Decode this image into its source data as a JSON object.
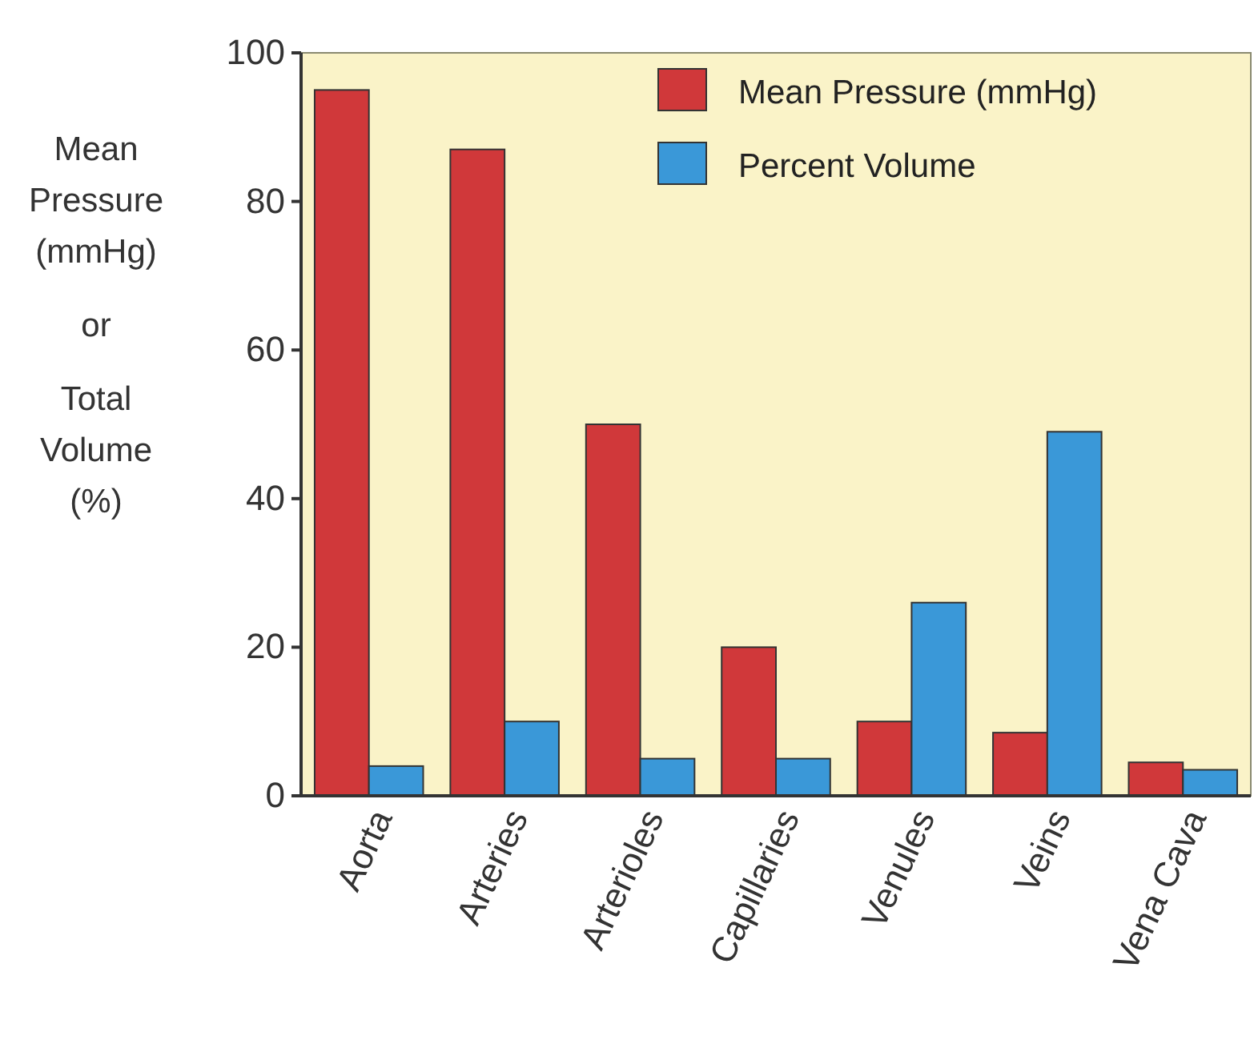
{
  "chart_data": {
    "type": "bar",
    "categories": [
      "Aorta",
      "Arteries",
      "Arterioles",
      "Capillaries",
      "Venules",
      "Veins",
      "Vena Cava"
    ],
    "series": [
      {
        "name": "Mean Pressure (mmHg)",
        "color": "#d0383a",
        "values": [
          95,
          87,
          50,
          20,
          10,
          8.5,
          4.5
        ]
      },
      {
        "name": "Percent Volume",
        "color": "#3a98d8",
        "values": [
          4,
          10,
          5,
          5,
          26,
          49,
          3.5
        ]
      }
    ],
    "ylabel": "Mean Pressure (mmHg) or Total Volume (%)",
    "ylim": [
      0,
      100
    ],
    "yticks": [
      0,
      20,
      40,
      60,
      80,
      100
    ],
    "legend": "top right",
    "grid": false
  }
}
